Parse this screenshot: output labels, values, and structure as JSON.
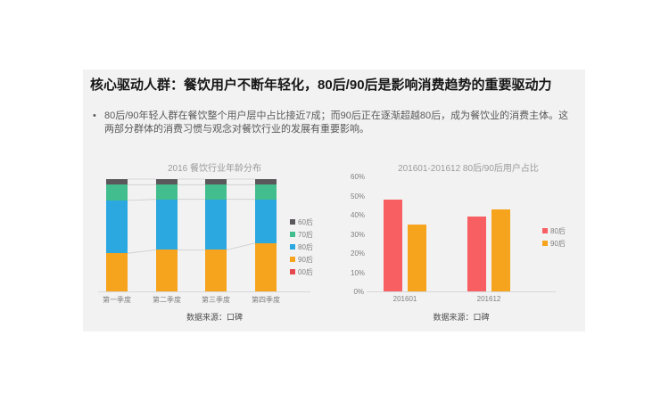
{
  "slide": {
    "title": "核心驱动人群：餐饮用户不断年轻化，80后/90后是影响消费趋势的重要驱动力",
    "bullet_marker": "•",
    "bullet": "80后/90年轻人群在餐饮整个用户层中占比接近7成；而90后正在逐渐超越80后，成为餐饮业的消费主体。这两部分群体的消费习惯与观念对餐饮行业的发展有重要影响。",
    "background_color": "#f2f2f2"
  },
  "chart_data": [
    {
      "type": "bar",
      "subtype": "stacked-100",
      "title": "2016 餐饮行业年龄分布",
      "categories": [
        "第一季度",
        "第二季度",
        "第三季度",
        "第四季度"
      ],
      "series": [
        {
          "name": "60后",
          "color": "#5a585a",
          "values": [
            5,
            5,
            5,
            5
          ]
        },
        {
          "name": "70后",
          "color": "#42be8e",
          "values": [
            14,
            13,
            13,
            13
          ]
        },
        {
          "name": "80后",
          "color": "#2ca8e0",
          "values": [
            47,
            45,
            45,
            39
          ]
        },
        {
          "name": "90后",
          "color": "#f6a41d",
          "values": [
            34,
            37,
            37,
            43
          ]
        },
        {
          "name": "00后",
          "color": "#e5484f",
          "values": [
            0,
            0,
            0,
            0
          ]
        }
      ],
      "stack_order_bottom_to_top": [
        "00后",
        "90后",
        "80后",
        "70后",
        "60后"
      ],
      "connector_line_series_top_to_bottom": [
        "60后",
        "70后",
        "80后"
      ],
      "legend_position": "right",
      "grid": false,
      "ylim": [
        0,
        100
      ],
      "source": "数据来源：口碑"
    },
    {
      "type": "bar",
      "subtype": "grouped",
      "title": "201601-201612 80后/90后用户占比",
      "categories": [
        "201601",
        "201612"
      ],
      "series": [
        {
          "name": "80后",
          "color": "#f85f63",
          "values": [
            48,
            39
          ]
        },
        {
          "name": "90后",
          "color": "#f6a41d",
          "values": [
            35,
            43
          ]
        }
      ],
      "yticks": [
        "0%",
        "10%",
        "20%",
        "30%",
        "40%",
        "50%",
        "60%"
      ],
      "ylim": [
        0,
        60
      ],
      "legend_position": "right",
      "grid": false,
      "source": "数据来源：口碑"
    }
  ]
}
